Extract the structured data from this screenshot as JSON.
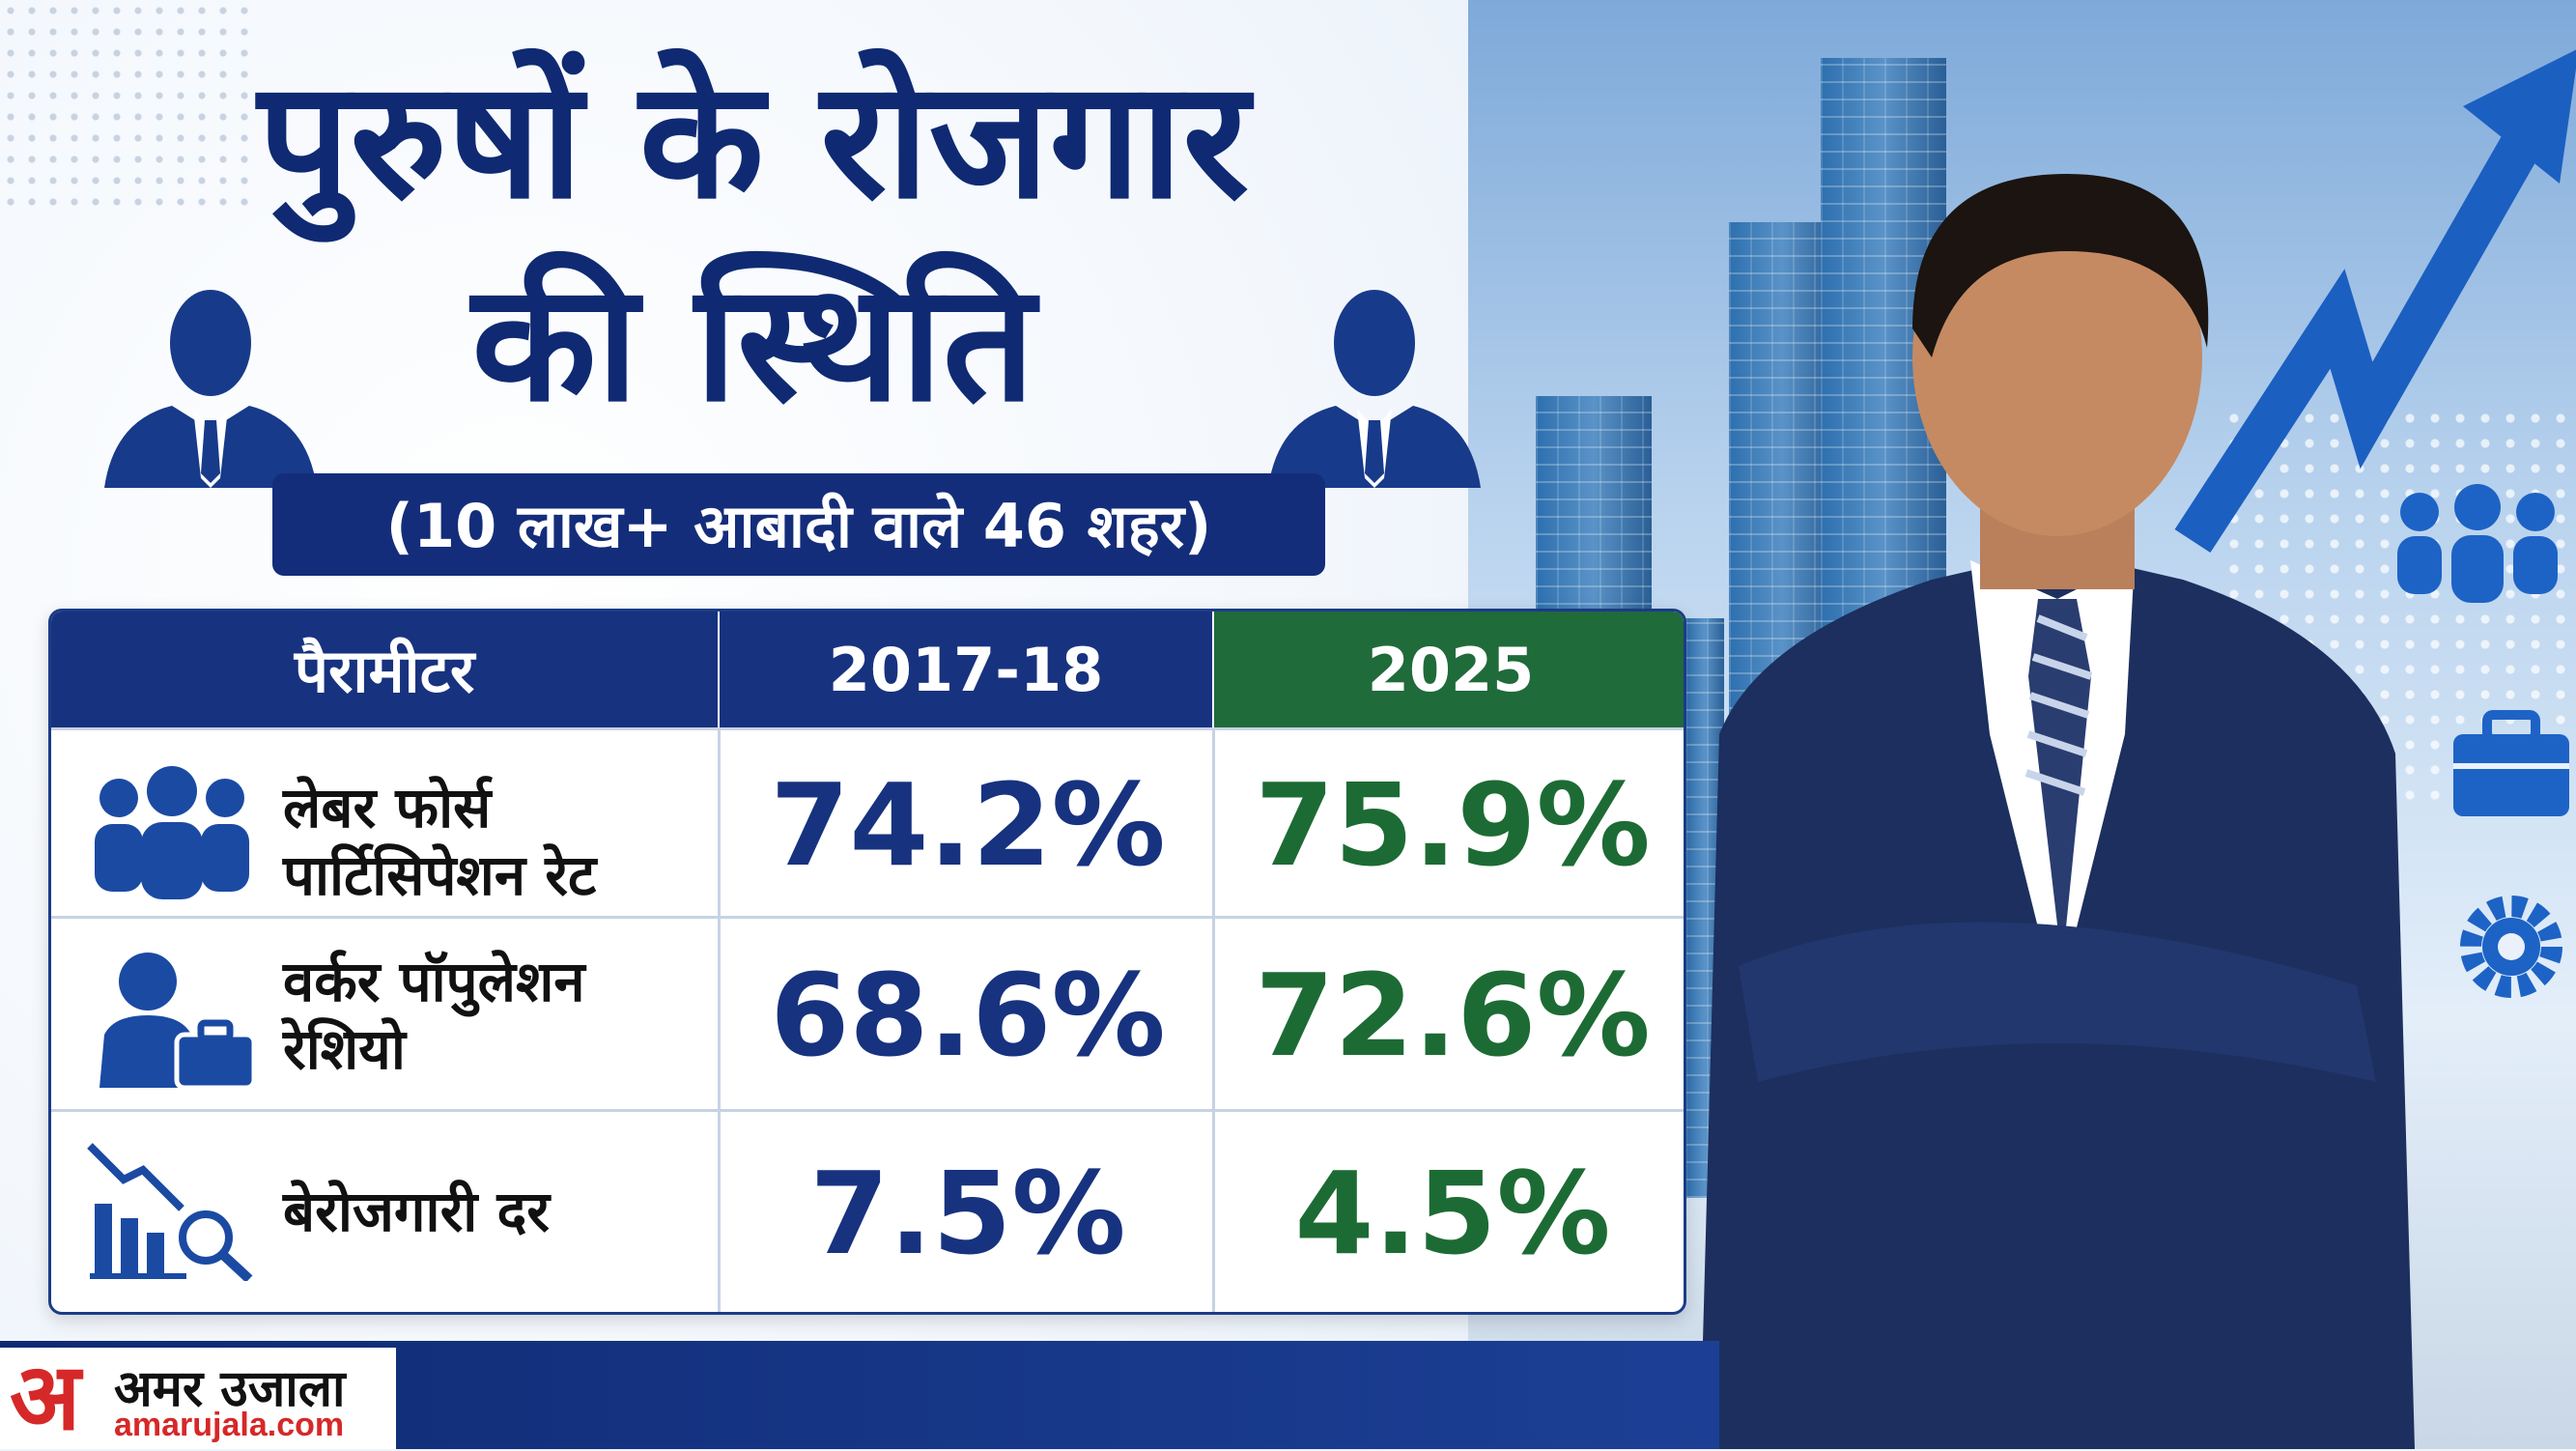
{
  "title": {
    "line1": "पुरुषों के रोजगार",
    "line2": "की स्थिति"
  },
  "subtitle": "(10 लाख+ आबादी वाले 46 शहर)",
  "table": {
    "headers": [
      "पैरामीटर",
      "2017-18",
      "2025"
    ],
    "rows": [
      {
        "icon": "people-group-icon",
        "label_line1": "लेबर फोर्स",
        "label_line2": "पार्टिसिपेशन रेट",
        "v2017": "74.2%",
        "v2025": "75.9%"
      },
      {
        "icon": "worker-briefcase-icon",
        "label_line1": "वर्कर पॉपुलेशन",
        "label_line2": "रेशियो",
        "v2017": "68.6%",
        "v2025": "72.6%"
      },
      {
        "icon": "declining-chart-magnifier-icon",
        "label_line1": "बेरोजगारी दर",
        "label_line2": "",
        "v2017": "7.5%",
        "v2025": "4.5%"
      }
    ]
  },
  "logo": {
    "mark": "अ",
    "name": "अमर उजाला",
    "site": "amarujala.com"
  },
  "colors": {
    "navy": "#17327f",
    "green": "#1f6b3a",
    "logo_red": "#d62828"
  }
}
